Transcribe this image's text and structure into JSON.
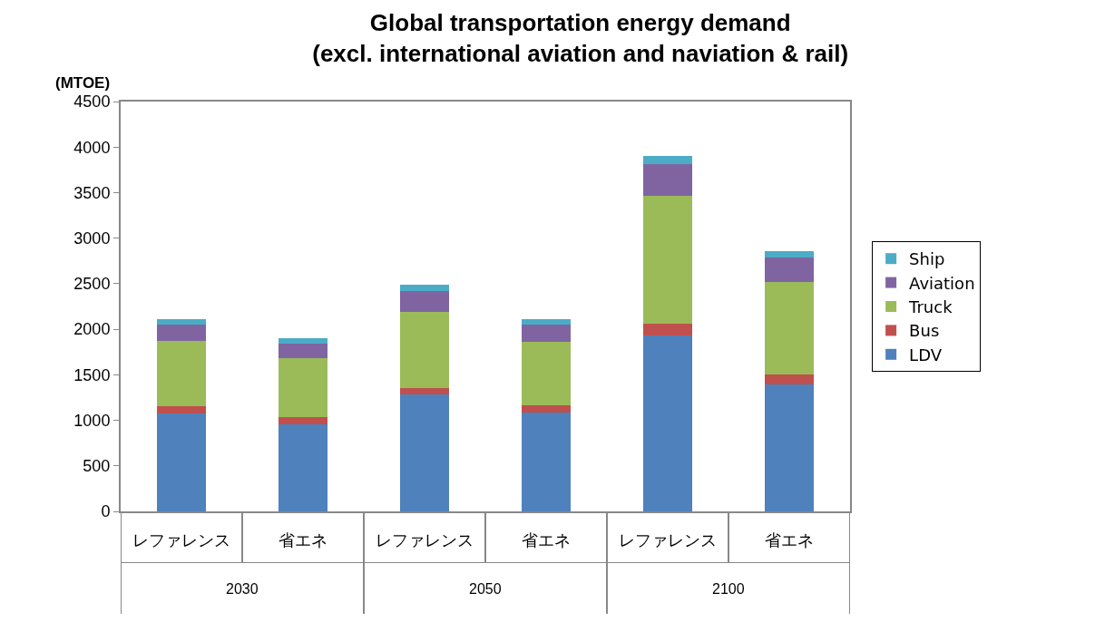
{
  "chart_data": {
    "type": "bar",
    "stacked": true,
    "title": "Global transportation energy demand\n(excl. international aviation and naviation & rail)",
    "ylabel": "(MTOE)",
    "categories": [
      "レファレンス",
      "省エネ",
      "レファレンス",
      "省エネ",
      "レファレンス",
      "省エネ"
    ],
    "annotations": [
      "2030",
      "2050",
      "2100"
    ],
    "series": [
      {
        "name": "LDV",
        "color": "#4f81bd",
        "values": [
          1080,
          960,
          1280,
          1090,
          1930,
          1390
        ]
      },
      {
        "name": "Bus",
        "color": "#c0504d",
        "values": [
          70,
          80,
          70,
          70,
          130,
          110
        ]
      },
      {
        "name": "Truck",
        "color": "#9bbb59",
        "values": [
          720,
          640,
          840,
          700,
          1400,
          1020
        ]
      },
      {
        "name": "Aviation",
        "color": "#8064a2",
        "values": [
          180,
          160,
          230,
          190,
          350,
          270
        ]
      },
      {
        "name": "Ship",
        "color": "#4bacc6",
        "values": [
          60,
          60,
          70,
          60,
          90,
          70
        ]
      }
    ],
    "ylim": [
      0,
      4500
    ],
    "yticks": [
      0,
      500,
      1000,
      1500,
      2000,
      2500,
      3000,
      3500,
      4000,
      4500
    ],
    "legend": "right"
  }
}
